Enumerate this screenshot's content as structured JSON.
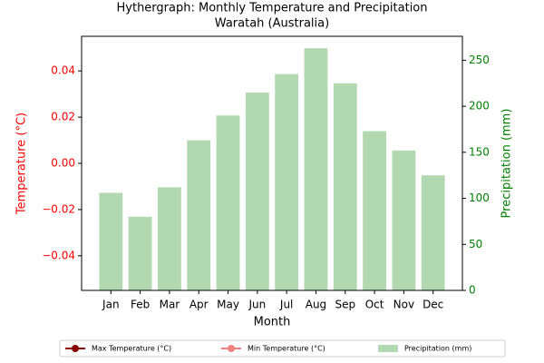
{
  "chart_data": {
    "type": "bar",
    "title": "Hythergraph: Monthly Temperature and Precipitation",
    "subtitle": "Waratah (Australia)",
    "xlabel": "Month",
    "ylabel": "Temperature (°C)",
    "y2label": "Precipitation (mm)",
    "categories": [
      "Jan",
      "Feb",
      "Mar",
      "Apr",
      "May",
      "Jun",
      "Jul",
      "Aug",
      "Sep",
      "Oct",
      "Nov",
      "Dec"
    ],
    "series": [
      {
        "name": "Max Temperature (°C)",
        "type": "line",
        "color": "#8b0000",
        "axis": "y",
        "values": [
          null,
          null,
          null,
          null,
          null,
          null,
          null,
          null,
          null,
          null,
          null,
          null
        ]
      },
      {
        "name": "Min Temperature (°C)",
        "type": "line",
        "color": "#f08080",
        "axis": "y",
        "values": [
          null,
          null,
          null,
          null,
          null,
          null,
          null,
          null,
          null,
          null,
          null,
          null
        ]
      },
      {
        "name": "Precipitation (mm)",
        "type": "bar",
        "color": "#b2d8b2",
        "axis": "y2",
        "values": [
          106,
          80,
          112,
          163,
          190,
          215,
          235,
          263,
          225,
          173,
          152,
          125
        ]
      }
    ],
    "ylim": [
      -0.055,
      0.055
    ],
    "yticks": [
      {
        "value": -0.04,
        "label": "−0.04"
      },
      {
        "value": -0.02,
        "label": "−0.02"
      },
      {
        "value": 0,
        "label": "0.00"
      },
      0.02,
      0.04
    ],
    "y2lim": [
      0,
      276
    ],
    "y2ticks": [
      0,
      50,
      100,
      150,
      200,
      250
    ],
    "ycolor": "#ff0000",
    "y2color": "#008000",
    "legend": "bottom"
  }
}
